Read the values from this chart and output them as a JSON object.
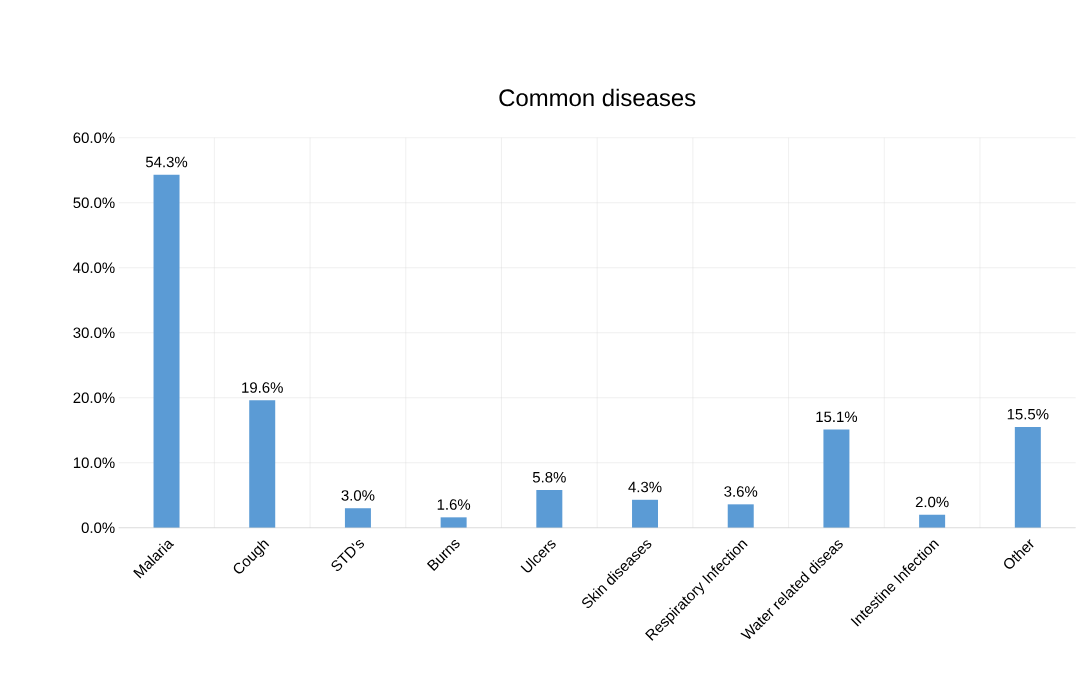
{
  "chart_data": {
    "type": "bar",
    "title": "Common diseases",
    "categories": [
      "Malaria",
      "Cough",
      "STD's",
      "Burns",
      "Ulcers",
      "Skin diseases",
      "Respiratory Infection",
      "Water related diseas",
      "Intestine Infection",
      "Other"
    ],
    "values": [
      54.3,
      19.6,
      3.0,
      1.6,
      5.8,
      4.3,
      3.6,
      15.1,
      2.0,
      15.5
    ],
    "value_labels": [
      "54.3%",
      "19.6%",
      "3.0%",
      "1.6%",
      "5.8%",
      "4.3%",
      "3.6%",
      "15.1%",
      "2.0%",
      "15.5%"
    ],
    "color": "#5b9bd5",
    "ylim": [
      0,
      60
    ],
    "yticks": [
      {
        "value": 0,
        "label": "0.0%"
      },
      {
        "value": 10,
        "label": "10.0%"
      },
      {
        "value": 20,
        "label": "20.0%"
      },
      {
        "value": 30,
        "label": "30.0%"
      },
      {
        "value": 40,
        "label": "40.0%"
      },
      {
        "value": 50,
        "label": "50.0%"
      },
      {
        "value": 60,
        "label": "60.0%"
      }
    ],
    "grid": "y"
  }
}
